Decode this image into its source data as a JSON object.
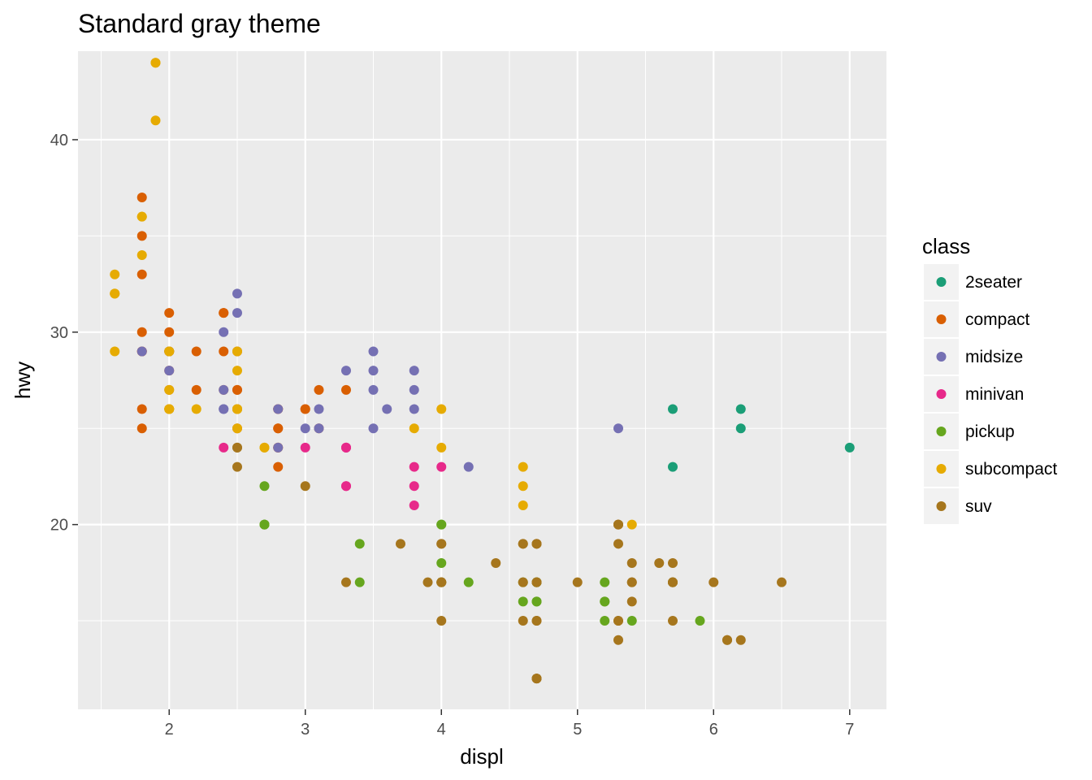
{
  "chart_data": {
    "type": "scatter",
    "title": "Standard gray theme",
    "xlabel": "displ",
    "ylabel": "hwy",
    "xlim": [
      1.33,
      7.27
    ],
    "ylim": [
      10.4,
      44.6
    ],
    "x_major_ticks": [
      2,
      3,
      4,
      5,
      6,
      7
    ],
    "y_major_ticks": [
      20,
      30,
      40
    ],
    "grid": true,
    "legend": {
      "title": "class",
      "position": "right"
    },
    "series": [
      {
        "name": "2seater",
        "color": "#1B9E77",
        "points": [
          [
            5.7,
            26
          ],
          [
            5.7,
            23
          ],
          [
            6.2,
            26
          ],
          [
            6.2,
            25
          ],
          [
            7.0,
            24
          ]
        ]
      },
      {
        "name": "compact",
        "color": "#D95F02",
        "points": [
          [
            1.8,
            29
          ],
          [
            1.8,
            29
          ],
          [
            2.0,
            31
          ],
          [
            2.0,
            30
          ],
          [
            2.8,
            26
          ],
          [
            2.8,
            26
          ],
          [
            3.1,
            27
          ],
          [
            1.8,
            26
          ],
          [
            1.8,
            25
          ],
          [
            2.0,
            28
          ],
          [
            2.0,
            27
          ],
          [
            2.8,
            25
          ],
          [
            2.8,
            25
          ],
          [
            3.1,
            25
          ],
          [
            2.2,
            27
          ],
          [
            2.2,
            29
          ],
          [
            2.4,
            31
          ],
          [
            2.4,
            31
          ],
          [
            3.0,
            26
          ],
          [
            1.8,
            37
          ],
          [
            1.8,
            35
          ],
          [
            1.8,
            33
          ],
          [
            1.8,
            30
          ],
          [
            2.0,
            29
          ],
          [
            2.5,
            27
          ],
          [
            2.5,
            25
          ],
          [
            2.5,
            27
          ],
          [
            2.5,
            29
          ],
          [
            2.4,
            27
          ],
          [
            2.4,
            29
          ],
          [
            3.0,
            26
          ],
          [
            2.8,
            23
          ],
          [
            2.8,
            24
          ],
          [
            2.8,
            24
          ],
          [
            3.3,
            27
          ],
          [
            2.0,
            26
          ],
          [
            2.0,
            29
          ],
          [
            2.0,
            29
          ]
        ]
      },
      {
        "name": "midsize",
        "color": "#7570B3",
        "points": [
          [
            2.8,
            24
          ],
          [
            3.1,
            25
          ],
          [
            4.2,
            23
          ],
          [
            2.4,
            30
          ],
          [
            2.4,
            27
          ],
          [
            3.1,
            26
          ],
          [
            3.5,
            29
          ],
          [
            3.6,
            26
          ],
          [
            1.8,
            29
          ],
          [
            2.0,
            28
          ],
          [
            2.4,
            26
          ],
          [
            2.5,
            31
          ],
          [
            2.5,
            32
          ],
          [
            3.3,
            28
          ],
          [
            3.5,
            27
          ],
          [
            3.5,
            28
          ],
          [
            3.8,
            28
          ],
          [
            3.8,
            27
          ],
          [
            5.3,
            25
          ],
          [
            2.4,
            26
          ],
          [
            2.5,
            26
          ],
          [
            3.0,
            25
          ],
          [
            3.5,
            25
          ],
          [
            2.0,
            29
          ],
          [
            2.8,
            26
          ],
          [
            3.8,
            26
          ]
        ]
      },
      {
        "name": "minivan",
        "color": "#E7298A",
        "points": [
          [
            2.4,
            24
          ],
          [
            3.0,
            24
          ],
          [
            3.3,
            22
          ],
          [
            3.3,
            22
          ],
          [
            3.3,
            24
          ],
          [
            3.3,
            24
          ],
          [
            3.8,
            21
          ],
          [
            3.8,
            22
          ],
          [
            3.8,
            23
          ],
          [
            4.0,
            23
          ],
          [
            3.3,
            24
          ]
        ]
      },
      {
        "name": "pickup",
        "color": "#66A61E",
        "points": [
          [
            2.7,
            20
          ],
          [
            2.7,
            20
          ],
          [
            3.4,
            19
          ],
          [
            3.4,
            17
          ],
          [
            4.0,
            20
          ],
          [
            4.0,
            18
          ],
          [
            4.7,
            17
          ],
          [
            4.7,
            16
          ],
          [
            4.7,
            17
          ],
          [
            5.2,
            16
          ],
          [
            5.2,
            15
          ],
          [
            5.7,
            17
          ],
          [
            5.9,
            15
          ],
          [
            4.7,
            16
          ],
          [
            4.7,
            17
          ],
          [
            5.2,
            17
          ],
          [
            5.2,
            16
          ],
          [
            2.7,
            22
          ],
          [
            2.7,
            20
          ],
          [
            4.0,
            17
          ],
          [
            4.0,
            20
          ],
          [
            4.6,
            16
          ],
          [
            5.4,
            15
          ],
          [
            4.2,
            17
          ],
          [
            4.6,
            17
          ]
        ]
      },
      {
        "name": "subcompact",
        "color": "#E6AB02",
        "points": [
          [
            3.8,
            25
          ],
          [
            4.6,
            21
          ],
          [
            5.4,
            20
          ],
          [
            4.6,
            23
          ],
          [
            1.6,
            33
          ],
          [
            1.6,
            32
          ],
          [
            1.6,
            32
          ],
          [
            1.6,
            29
          ],
          [
            1.6,
            32
          ],
          [
            1.8,
            34
          ],
          [
            1.8,
            36
          ],
          [
            1.8,
            36
          ],
          [
            2.0,
            29
          ],
          [
            2.0,
            26
          ],
          [
            2.0,
            27
          ],
          [
            2.0,
            26
          ],
          [
            2.5,
            29
          ],
          [
            2.5,
            28
          ],
          [
            2.7,
            24
          ],
          [
            2.7,
            24
          ],
          [
            2.5,
            26
          ],
          [
            2.5,
            26
          ],
          [
            2.5,
            26
          ],
          [
            2.5,
            25
          ],
          [
            1.9,
            44
          ],
          [
            1.9,
            44
          ],
          [
            1.9,
            41
          ],
          [
            2.0,
            29
          ],
          [
            2.0,
            26
          ],
          [
            2.2,
            26
          ],
          [
            2.5,
            26
          ],
          [
            4.0,
            26
          ],
          [
            4.0,
            24
          ],
          [
            4.6,
            22
          ]
        ]
      },
      {
        "name": "suv",
        "color": "#A6761D",
        "points": [
          [
            5.3,
            20
          ],
          [
            5.3,
            15
          ],
          [
            5.3,
            20
          ],
          [
            5.7,
            17
          ],
          [
            6.0,
            17
          ],
          [
            5.7,
            17
          ],
          [
            5.3,
            19
          ],
          [
            6.5,
            17
          ],
          [
            4.0,
            17
          ],
          [
            4.0,
            17
          ],
          [
            4.6,
            15
          ],
          [
            5.4,
            16
          ],
          [
            4.7,
            12
          ],
          [
            4.7,
            12
          ],
          [
            4.7,
            17
          ],
          [
            4.7,
            15
          ],
          [
            4.7,
            19
          ],
          [
            5.7,
            17
          ],
          [
            5.3,
            14
          ],
          [
            5.3,
            15
          ],
          [
            6.1,
            14
          ],
          [
            6.2,
            14
          ],
          [
            4.4,
            18
          ],
          [
            4.6,
            19
          ],
          [
            5.4,
            18
          ],
          [
            5.4,
            17
          ],
          [
            5.6,
            18
          ],
          [
            2.5,
            23
          ],
          [
            2.5,
            24
          ],
          [
            2.5,
            24
          ],
          [
            3.3,
            17
          ],
          [
            3.7,
            19
          ],
          [
            4.0,
            19
          ],
          [
            4.6,
            17
          ],
          [
            3.9,
            17
          ],
          [
            4.0,
            17
          ],
          [
            4.0,
            19
          ],
          [
            4.7,
            12
          ],
          [
            4.7,
            19
          ],
          [
            5.7,
            18
          ],
          [
            3.0,
            22
          ],
          [
            4.7,
            17
          ],
          [
            4.0,
            15
          ],
          [
            5.7,
            15
          ],
          [
            6.1,
            14
          ],
          [
            5.0,
            17
          ],
          [
            5.4,
            17
          ],
          [
            4.7,
            19
          ],
          [
            4.6,
            19
          ],
          [
            4.7,
            15
          ],
          [
            5.3,
            20
          ]
        ]
      }
    ]
  }
}
